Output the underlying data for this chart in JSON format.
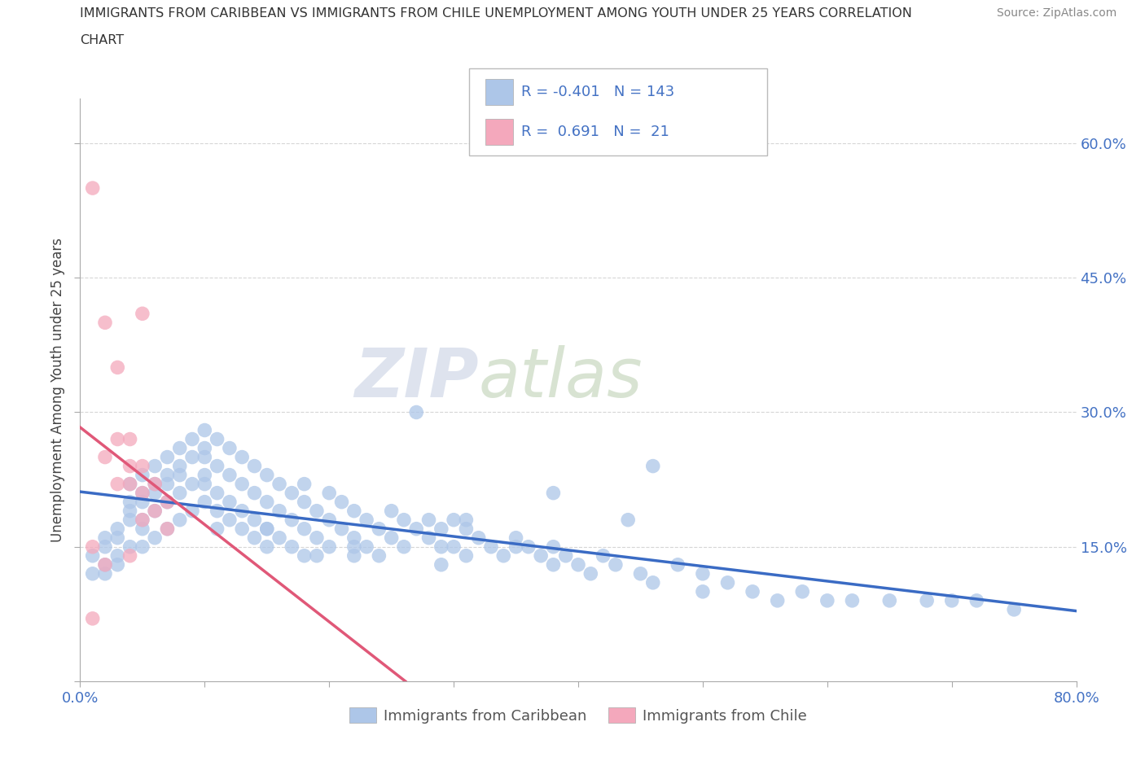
{
  "title_line1": "IMMIGRANTS FROM CARIBBEAN VS IMMIGRANTS FROM CHILE UNEMPLOYMENT AMONG YOUTH UNDER 25 YEARS CORRELATION",
  "title_line2": "CHART",
  "source_text": "Source: ZipAtlas.com",
  "ylabel": "Unemployment Among Youth under 25 years",
  "xlim": [
    0.0,
    0.8
  ],
  "ylim": [
    0.0,
    0.65
  ],
  "x_ticks": [
    0.0,
    0.1,
    0.2,
    0.3,
    0.4,
    0.5,
    0.6,
    0.7,
    0.8
  ],
  "y_ticks": [
    0.0,
    0.15,
    0.3,
    0.45,
    0.6
  ],
  "y_tick_labels": [
    "",
    "15.0%",
    "30.0%",
    "45.0%",
    "60.0%"
  ],
  "grid_color": "#cccccc",
  "grid_style": "--",
  "watermark_zip": "ZIP",
  "watermark_atlas": "atlas",
  "caribbean_color": "#adc6e8",
  "chile_color": "#f4a8bc",
  "caribbean_line_color": "#3a6bc4",
  "chile_line_color": "#e05878",
  "tick_label_color": "#4472c4",
  "title_color": "#333333",
  "R_caribbean": -0.401,
  "N_caribbean": 143,
  "R_chile": 0.691,
  "N_chile": 21,
  "caribbean_scatter_x": [
    0.01,
    0.01,
    0.02,
    0.02,
    0.02,
    0.02,
    0.03,
    0.03,
    0.03,
    0.03,
    0.04,
    0.04,
    0.04,
    0.04,
    0.04,
    0.05,
    0.05,
    0.05,
    0.05,
    0.05,
    0.05,
    0.06,
    0.06,
    0.06,
    0.06,
    0.06,
    0.07,
    0.07,
    0.07,
    0.07,
    0.07,
    0.08,
    0.08,
    0.08,
    0.08,
    0.08,
    0.09,
    0.09,
    0.09,
    0.09,
    0.1,
    0.1,
    0.1,
    0.1,
    0.1,
    0.11,
    0.11,
    0.11,
    0.11,
    0.11,
    0.12,
    0.12,
    0.12,
    0.12,
    0.13,
    0.13,
    0.13,
    0.13,
    0.14,
    0.14,
    0.14,
    0.14,
    0.15,
    0.15,
    0.15,
    0.15,
    0.16,
    0.16,
    0.16,
    0.17,
    0.17,
    0.17,
    0.18,
    0.18,
    0.18,
    0.18,
    0.19,
    0.19,
    0.19,
    0.2,
    0.2,
    0.2,
    0.21,
    0.21,
    0.22,
    0.22,
    0.22,
    0.23,
    0.23,
    0.24,
    0.24,
    0.25,
    0.25,
    0.26,
    0.26,
    0.27,
    0.28,
    0.28,
    0.29,
    0.29,
    0.3,
    0.3,
    0.31,
    0.31,
    0.32,
    0.33,
    0.34,
    0.35,
    0.36,
    0.37,
    0.38,
    0.38,
    0.39,
    0.4,
    0.41,
    0.42,
    0.43,
    0.45,
    0.46,
    0.48,
    0.5,
    0.5,
    0.52,
    0.54,
    0.56,
    0.58,
    0.6,
    0.62,
    0.65,
    0.68,
    0.7,
    0.72,
    0.75,
    0.46,
    0.38,
    0.31,
    0.27,
    0.44,
    0.35,
    0.29,
    0.22,
    0.15,
    0.1
  ],
  "caribbean_scatter_y": [
    0.14,
    0.12,
    0.16,
    0.13,
    0.15,
    0.12,
    0.17,
    0.14,
    0.16,
    0.13,
    0.2,
    0.18,
    0.15,
    0.22,
    0.19,
    0.21,
    0.18,
    0.15,
    0.23,
    0.2,
    0.17,
    0.22,
    0.19,
    0.16,
    0.24,
    0.21,
    0.23,
    0.2,
    0.17,
    0.25,
    0.22,
    0.24,
    0.21,
    0.18,
    0.26,
    0.23,
    0.25,
    0.22,
    0.19,
    0.27,
    0.26,
    0.23,
    0.2,
    0.28,
    0.25,
    0.27,
    0.24,
    0.21,
    0.19,
    0.17,
    0.26,
    0.23,
    0.2,
    0.18,
    0.25,
    0.22,
    0.19,
    0.17,
    0.24,
    0.21,
    0.18,
    0.16,
    0.23,
    0.2,
    0.17,
    0.15,
    0.22,
    0.19,
    0.16,
    0.21,
    0.18,
    0.15,
    0.2,
    0.17,
    0.14,
    0.22,
    0.19,
    0.16,
    0.14,
    0.21,
    0.18,
    0.15,
    0.2,
    0.17,
    0.19,
    0.16,
    0.14,
    0.18,
    0.15,
    0.17,
    0.14,
    0.19,
    0.16,
    0.18,
    0.15,
    0.17,
    0.16,
    0.18,
    0.15,
    0.17,
    0.18,
    0.15,
    0.17,
    0.14,
    0.16,
    0.15,
    0.14,
    0.16,
    0.15,
    0.14,
    0.13,
    0.15,
    0.14,
    0.13,
    0.12,
    0.14,
    0.13,
    0.12,
    0.11,
    0.13,
    0.12,
    0.1,
    0.11,
    0.1,
    0.09,
    0.1,
    0.09,
    0.09,
    0.09,
    0.09,
    0.09,
    0.09,
    0.08,
    0.24,
    0.21,
    0.18,
    0.3,
    0.18,
    0.15,
    0.13,
    0.15,
    0.17,
    0.22
  ],
  "chile_scatter_x": [
    0.01,
    0.01,
    0.01,
    0.02,
    0.02,
    0.02,
    0.03,
    0.03,
    0.03,
    0.04,
    0.04,
    0.04,
    0.04,
    0.05,
    0.05,
    0.05,
    0.05,
    0.06,
    0.06,
    0.07,
    0.07
  ],
  "chile_scatter_y": [
    0.55,
    0.15,
    0.07,
    0.4,
    0.25,
    0.13,
    0.27,
    0.22,
    0.35,
    0.27,
    0.24,
    0.22,
    0.14,
    0.24,
    0.21,
    0.18,
    0.41,
    0.22,
    0.19,
    0.2,
    0.17
  ]
}
